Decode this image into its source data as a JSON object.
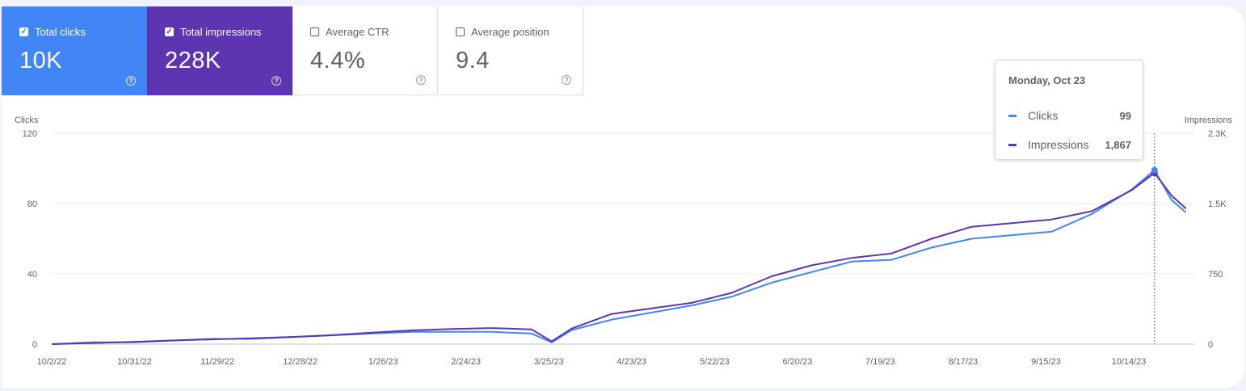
{
  "metrics": [
    {
      "label": "Total clicks",
      "value": "10K",
      "checked": true
    },
    {
      "label": "Total impressions",
      "value": "228K",
      "checked": true
    },
    {
      "label": "Average CTR",
      "value": "4.4%",
      "checked": false
    },
    {
      "label": "Average position",
      "value": "9.4",
      "checked": false
    }
  ],
  "icons": {
    "checkbox_checked": "checkbox-checked-icon",
    "checkbox_unchecked": "checkbox-unchecked-icon",
    "help": "help-circle-icon"
  },
  "colors": {
    "clicks": "#4285f4",
    "impressions": "#5e35b1",
    "grid": "#e8eaed",
    "axis_text": "#5f6368"
  },
  "tooltip": {
    "date": "Monday, Oct 23",
    "rows": [
      {
        "label": "Clicks",
        "value": "99"
      },
      {
        "label": "Impressions",
        "value": "1,867"
      }
    ]
  },
  "chart_data": {
    "type": "line",
    "xlabel": "",
    "ylabel": "Clicks",
    "y2label": "Impressions",
    "ylim": [
      0,
      120
    ],
    "y2lim": [
      0,
      2300
    ],
    "yticks": [
      "0",
      "40",
      "80",
      "120"
    ],
    "y2ticks": [
      "0",
      "750",
      "1.5K",
      "2.3K"
    ],
    "xticks": [
      "10/2/22",
      "10/31/22",
      "11/29/22",
      "12/28/22",
      "1/26/23",
      "2/24/23",
      "3/25/23",
      "4/23/23",
      "5/22/23",
      "6/20/23",
      "7/19/23",
      "8/17/23",
      "9/15/23",
      "10/14/23"
    ],
    "x_dates": [
      "10/2/22",
      "10/16/22",
      "10/30/22",
      "11/13/22",
      "11/27/22",
      "12/11/22",
      "12/25/22",
      "1/8/23",
      "1/22/23",
      "2/5/23",
      "2/19/23",
      "3/5/23",
      "3/19/23",
      "3/26/23",
      "4/2/23",
      "4/16/23",
      "4/30/23",
      "5/14/23",
      "5/28/23",
      "6/11/23",
      "6/25/23",
      "7/9/23",
      "7/23/23",
      "8/6/23",
      "8/20/23",
      "9/3/23",
      "9/17/23",
      "10/1/23",
      "10/15/23",
      "10/23/23",
      "10/29/23",
      "11/3/23"
    ],
    "grid": true,
    "legend": "none",
    "series": [
      {
        "name": "Clicks",
        "axis": "left",
        "color": "#4285f4",
        "values": [
          0,
          1,
          1,
          2,
          3,
          3,
          4,
          5,
          6,
          7,
          7,
          7,
          6,
          1,
          8,
          14,
          18,
          22,
          27,
          35,
          41,
          47,
          48,
          55,
          60,
          62,
          64,
          74,
          88,
          99,
          82,
          75
        ]
      },
      {
        "name": "Impressions",
        "axis": "right",
        "color": "#5e35b1",
        "values": [
          0,
          12,
          24,
          40,
          52,
          64,
          78,
          98,
          125,
          150,
          165,
          175,
          160,
          30,
          170,
          330,
          390,
          450,
          560,
          740,
          860,
          940,
          990,
          1150,
          1280,
          1320,
          1360,
          1450,
          1680,
          1867,
          1620,
          1480
        ]
      }
    ]
  }
}
